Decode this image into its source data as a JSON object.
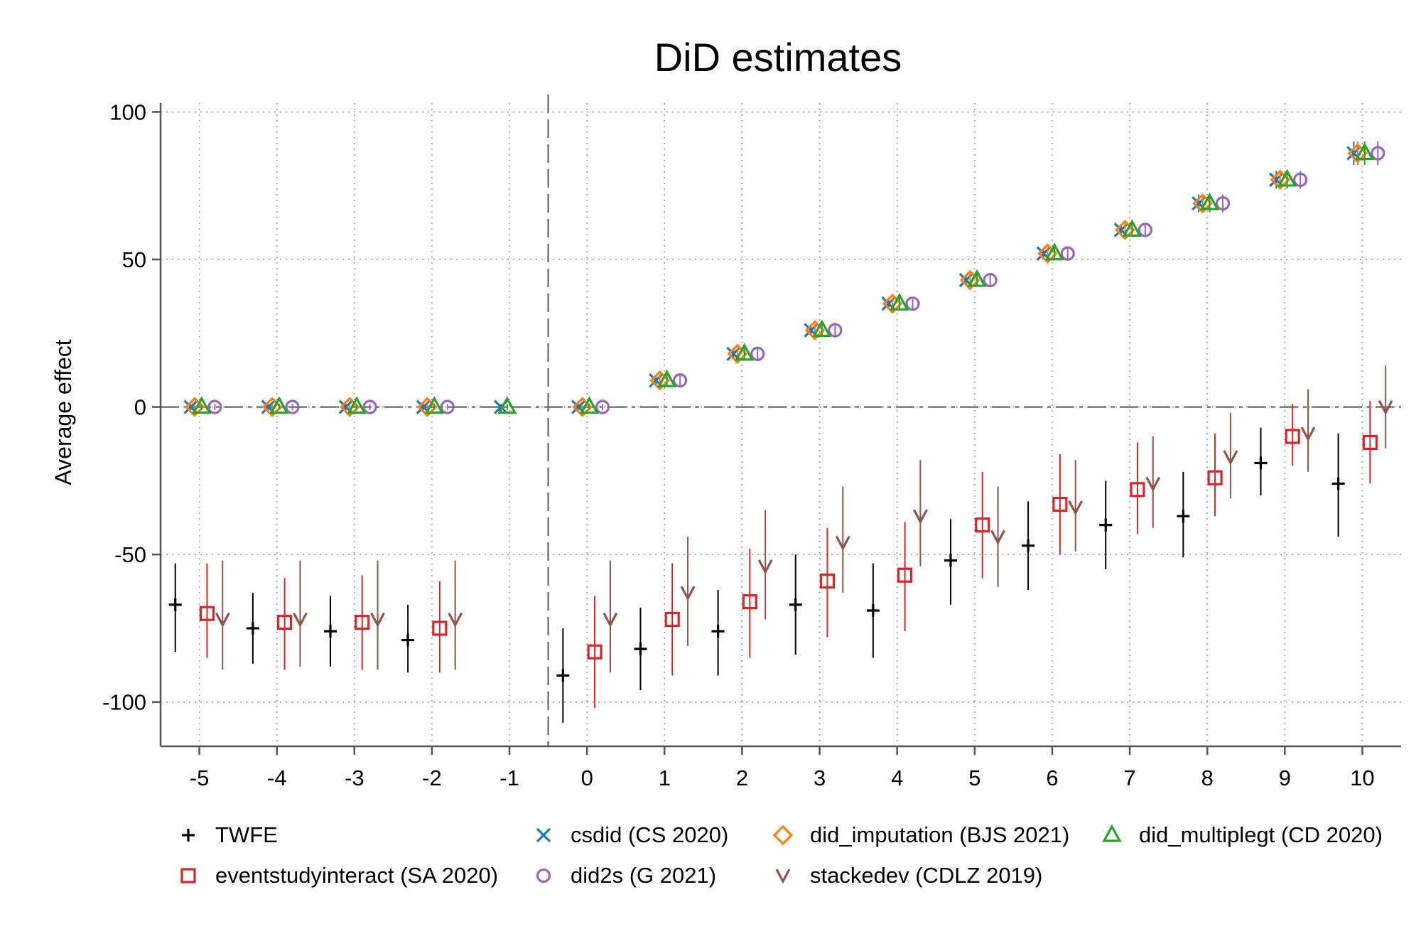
{
  "chart_data": {
    "type": "scatter",
    "title": "DiD estimates",
    "xlabel": "",
    "ylabel": "Average effect",
    "xlim": [
      -5.5,
      10.5
    ],
    "ylim": [
      -115,
      103
    ],
    "x_ticks": [
      -5,
      -4,
      -3,
      -2,
      -1,
      0,
      1,
      2,
      3,
      4,
      5,
      6,
      7,
      8,
      9,
      10
    ],
    "y_ticks": [
      100,
      50,
      0,
      -50,
      -100
    ],
    "grid": "dotted",
    "reference_lines": {
      "y": 0,
      "x": -0.5
    },
    "legend_position": "bottom",
    "series": [
      {
        "name": "TWFE",
        "marker": "plus",
        "color": "#000000",
        "x": [
          -5,
          -4,
          -3,
          -2,
          0,
          1,
          2,
          3,
          4,
          5,
          6,
          7,
          8,
          9,
          10
        ],
        "y": [
          -67,
          -75,
          -76,
          -79,
          -91,
          -82,
          -76,
          -67,
          -69,
          -52,
          -47,
          -40,
          -37,
          -19,
          -26
        ],
        "ci_low": [
          -83,
          -87,
          -88,
          -90,
          -107,
          -96,
          -91,
          -84,
          -85,
          -67,
          -62,
          -55,
          -51,
          -30,
          -44
        ],
        "ci_high": [
          -53,
          -63,
          -64,
          -67,
          -75,
          -68,
          -62,
          -50,
          -53,
          -38,
          -32,
          -25,
          -22,
          -7,
          -9
        ]
      },
      {
        "name": "eventstudyinteract (SA 2020)",
        "marker": "square",
        "color": "#d62728",
        "x": [
          -5,
          -4,
          -3,
          -2,
          0,
          1,
          2,
          3,
          4,
          5,
          6,
          7,
          8,
          9,
          10
        ],
        "y": [
          -70,
          -73,
          -73,
          -75,
          -83,
          -72,
          -66,
          -59,
          -57,
          -40,
          -33,
          -28,
          -24,
          -10,
          -12
        ],
        "ci_low": [
          -85,
          -89,
          -89,
          -90,
          -102,
          -91,
          -85,
          -78,
          -76,
          -58,
          -50,
          -43,
          -37,
          -20,
          -26
        ],
        "ci_high": [
          -53,
          -58,
          -57,
          -59,
          -64,
          -53,
          -48,
          -41,
          -39,
          -22,
          -16,
          -12,
          -9,
          1,
          2
        ]
      },
      {
        "name": "csdid (CS 2020)",
        "marker": "x",
        "color": "#1f77b4",
        "x": [
          -5,
          -4,
          -3,
          -2,
          -1,
          0,
          1,
          2,
          3,
          4,
          5,
          6,
          7,
          8,
          9,
          10
        ],
        "y": [
          0,
          0,
          0,
          0,
          0,
          0,
          9,
          18,
          26,
          35,
          43,
          52,
          60,
          69,
          77,
          86
        ],
        "ci_low": [
          -1,
          -1,
          -1,
          -1,
          -1,
          -1,
          7,
          16,
          24,
          33,
          41,
          50,
          58,
          66,
          74,
          82
        ],
        "ci_high": [
          1,
          1,
          1,
          1,
          1,
          1,
          11,
          20,
          28,
          37,
          45,
          54,
          62,
          72,
          80,
          90
        ]
      },
      {
        "name": "did2s (G 2021)",
        "marker": "circle",
        "color": "#9467bd",
        "x": [
          -5,
          -4,
          -3,
          -2,
          0,
          1,
          2,
          3,
          4,
          5,
          6,
          7,
          8,
          9,
          10
        ],
        "y": [
          0,
          0,
          0,
          0,
          0,
          9,
          18,
          26,
          35,
          43,
          52,
          60,
          69,
          77,
          86
        ],
        "ci_low": [
          -1,
          -1,
          -1,
          -1,
          -1,
          7,
          16,
          24,
          33,
          41,
          50,
          58,
          66,
          74,
          82
        ],
        "ci_high": [
          1,
          1,
          1,
          1,
          1,
          11,
          20,
          28,
          37,
          45,
          54,
          62,
          72,
          80,
          90
        ]
      },
      {
        "name": "did_imputation (BJS 2021)",
        "marker": "diamond",
        "color": "#ff7f0e",
        "x": [
          -5,
          -4,
          -3,
          -2,
          0,
          1,
          2,
          3,
          4,
          5,
          6,
          7,
          8,
          9,
          10
        ],
        "y": [
          0,
          0,
          0,
          0,
          0,
          9,
          18,
          26,
          35,
          43,
          52,
          60,
          69,
          77,
          86
        ],
        "ci_low": [
          -1,
          -1,
          -1,
          -1,
          -1,
          7,
          16,
          24,
          33,
          41,
          50,
          58,
          66,
          74,
          82
        ],
        "ci_high": [
          1,
          1,
          1,
          1,
          1,
          11,
          20,
          28,
          37,
          45,
          54,
          62,
          72,
          80,
          90
        ]
      },
      {
        "name": "stackedev (CDLZ 2019)",
        "marker": "v",
        "color": "#8c564b",
        "x": [
          -5,
          -4,
          -3,
          -2,
          0,
          1,
          2,
          3,
          4,
          5,
          6,
          7,
          8,
          9,
          10
        ],
        "y": [
          -72,
          -72,
          -72,
          -72,
          -72,
          -63,
          -54,
          -46,
          -37,
          -44,
          -34,
          -26,
          -17,
          -9,
          0
        ],
        "ci_low": [
          -89,
          -88,
          -89,
          -89,
          -90,
          -81,
          -72,
          -63,
          -54,
          -61,
          -49,
          -41,
          -31,
          -22,
          -14
        ],
        "ci_high": [
          -52,
          -52,
          -52,
          -52,
          -52,
          -44,
          -35,
          -27,
          -18,
          -27,
          -18,
          -10,
          -2,
          6,
          14
        ]
      },
      {
        "name": "did_multiplegt (CD 2020)",
        "marker": "triangle",
        "color": "#2ca02c",
        "x": [
          -5,
          -4,
          -3,
          -2,
          -1,
          0,
          1,
          2,
          3,
          4,
          5,
          6,
          7,
          8,
          9,
          10
        ],
        "y": [
          0,
          0,
          0,
          0,
          0,
          0,
          9,
          18,
          26,
          35,
          43,
          52,
          60,
          69,
          77,
          86
        ],
        "ci_low": [
          -1,
          -1,
          -1,
          -1,
          -1,
          -1,
          7,
          16,
          24,
          33,
          41,
          50,
          58,
          66,
          74,
          82
        ],
        "ci_high": [
          1,
          1,
          1,
          1,
          1,
          1,
          11,
          20,
          28,
          37,
          45,
          54,
          62,
          72,
          80,
          90
        ]
      }
    ],
    "legend": [
      {
        "label": "TWFE",
        "marker": "plus",
        "color": "#000000"
      },
      {
        "label": "csdid (CS 2020)",
        "marker": "x",
        "color": "#1f77b4"
      },
      {
        "label": "did_imputation (BJS 2021)",
        "marker": "diamond",
        "color": "#ff7f0e"
      },
      {
        "label": "did_multiplegt (CD 2020)",
        "marker": "triangle",
        "color": "#2ca02c"
      },
      {
        "label": "eventstudyinteract (SA 2020)",
        "marker": "square",
        "color": "#d62728"
      },
      {
        "label": "did2s (G 2021)",
        "marker": "circle",
        "color": "#9467bd"
      },
      {
        "label": "stackedev (CDLZ 2019)",
        "marker": "v",
        "color": "#8c564b"
      }
    ]
  }
}
